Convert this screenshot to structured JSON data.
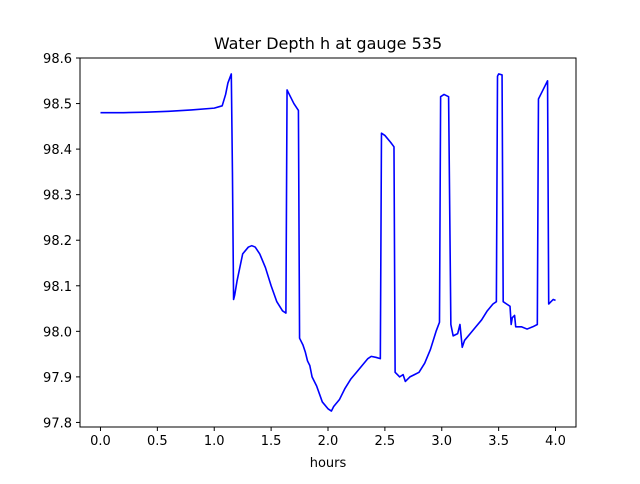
{
  "chart_data": {
    "type": "line",
    "title": "Water Depth h at gauge 535",
    "xlabel": "hours",
    "ylabel": "",
    "xlim": [
      -0.18,
      4.18
    ],
    "ylim": [
      97.79,
      98.6
    ],
    "grid": false,
    "legend": "none",
    "xticks": [
      0.0,
      0.5,
      1.0,
      1.5,
      2.0,
      2.5,
      3.0,
      3.5,
      4.0
    ],
    "xtick_labels": [
      "0.0",
      "0.5",
      "1.0",
      "1.5",
      "2.0",
      "2.5",
      "3.0",
      "3.5",
      "4.0"
    ],
    "yticks": [
      97.8,
      97.9,
      98.0,
      98.1,
      98.2,
      98.3,
      98.4,
      98.5,
      98.6
    ],
    "ytick_labels": [
      "97.8",
      "97.9",
      "98.0",
      "98.1",
      "98.2",
      "98.3",
      "98.4",
      "98.5",
      "98.6"
    ],
    "series": [
      {
        "color": "#0000ff",
        "x": [
          0.0,
          0.2,
          0.4,
          0.6,
          0.8,
          1.0,
          1.07,
          1.1,
          1.12,
          1.15,
          1.16,
          1.17,
          1.18,
          1.2,
          1.25,
          1.3,
          1.33,
          1.36,
          1.4,
          1.45,
          1.5,
          1.55,
          1.6,
          1.63,
          1.64,
          1.65,
          1.7,
          1.74,
          1.75,
          1.78,
          1.8,
          1.82,
          1.84,
          1.86,
          1.9,
          1.95,
          2.0,
          2.03,
          2.05,
          2.1,
          2.15,
          2.2,
          2.25,
          2.3,
          2.35,
          2.38,
          2.42,
          2.46,
          2.47,
          2.5,
          2.55,
          2.58,
          2.59,
          2.61,
          2.63,
          2.66,
          2.68,
          2.72,
          2.76,
          2.8,
          2.85,
          2.9,
          2.95,
          2.98,
          2.99,
          3.02,
          3.06,
          3.08,
          3.1,
          3.14,
          3.16,
          3.18,
          3.2,
          3.25,
          3.3,
          3.35,
          3.4,
          3.45,
          3.48,
          3.49,
          3.5,
          3.53,
          3.54,
          3.57,
          3.6,
          3.61,
          3.62,
          3.64,
          3.65,
          3.7,
          3.75,
          3.8,
          3.84,
          3.85,
          3.88,
          3.91,
          3.93,
          3.94,
          3.96,
          3.98,
          4.0
        ],
        "values": [
          98.48,
          98.48,
          98.481,
          98.483,
          98.486,
          98.49,
          98.495,
          98.52,
          98.545,
          98.565,
          98.35,
          98.07,
          98.08,
          98.11,
          98.17,
          98.185,
          98.188,
          98.185,
          98.17,
          98.14,
          98.1,
          98.065,
          98.045,
          98.04,
          98.53,
          98.525,
          98.5,
          98.485,
          97.985,
          97.97,
          97.955,
          97.935,
          97.925,
          97.9,
          97.88,
          97.845,
          97.83,
          97.825,
          97.835,
          97.85,
          97.875,
          97.895,
          97.91,
          97.925,
          97.94,
          97.945,
          97.943,
          97.94,
          98.435,
          98.43,
          98.415,
          98.405,
          97.91,
          97.905,
          97.9,
          97.905,
          97.89,
          97.9,
          97.905,
          97.91,
          97.93,
          97.96,
          98.0,
          98.02,
          98.515,
          98.52,
          98.515,
          98.015,
          97.99,
          97.995,
          98.015,
          97.965,
          97.98,
          97.995,
          98.01,
          98.025,
          98.045,
          98.06,
          98.065,
          98.56,
          98.565,
          98.563,
          98.065,
          98.06,
          98.055,
          98.015,
          98.03,
          98.035,
          98.01,
          98.01,
          98.005,
          98.01,
          98.015,
          98.51,
          98.525,
          98.54,
          98.55,
          98.06,
          98.065,
          98.07,
          98.068
        ]
      }
    ]
  }
}
